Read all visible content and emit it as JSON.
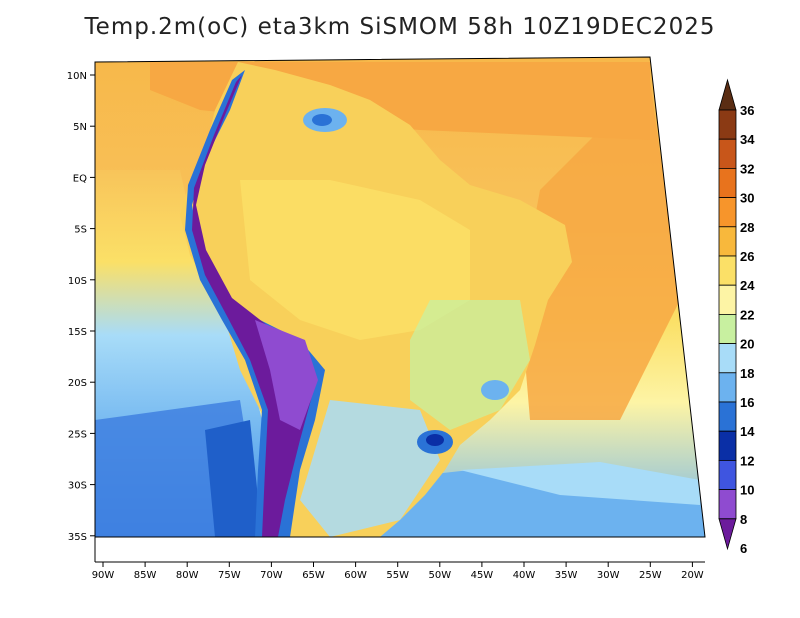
{
  "title": "Temp.2m(oC) eta3km SiSMOM 58h 10Z19DEC2025",
  "lon_labels": [
    "90W",
    "85W",
    "80W",
    "75W",
    "70W",
    "65W",
    "60W",
    "55W",
    "50W",
    "45W",
    "40W",
    "35W",
    "30W",
    "25W",
    "20W"
  ],
  "lat_labels": [
    "10N",
    "5N",
    "EQ",
    "5S",
    "10S",
    "15S",
    "20S",
    "25S",
    "30S",
    "35S"
  ],
  "colorbar": {
    "labels": [
      "36",
      "34",
      "32",
      "30",
      "28",
      "26",
      "24",
      "22",
      "20",
      "18",
      "16",
      "14",
      "12",
      "10",
      "8",
      "6"
    ],
    "colors": [
      "#5a2d13",
      "#8b3a14",
      "#c8561a",
      "#e8731d",
      "#f7952b",
      "#f8b83c",
      "#fbe067",
      "#fdf4a5",
      "#c8f0a0",
      "#a8dcf8",
      "#6cb2ef",
      "#2a72d6",
      "#0a2fa6",
      "#3f55e0",
      "#8f4bd0",
      "#6c1b9c"
    ]
  },
  "map": {
    "region": "South America",
    "ocean_warm": "#f7a843",
    "ocean_mid": "#fdf4a5",
    "ocean_cool": "#8ec6f4",
    "ocean_cold": "#2a6ed8",
    "land_base": "#f8d05a",
    "andes": "#6c1b9c"
  }
}
